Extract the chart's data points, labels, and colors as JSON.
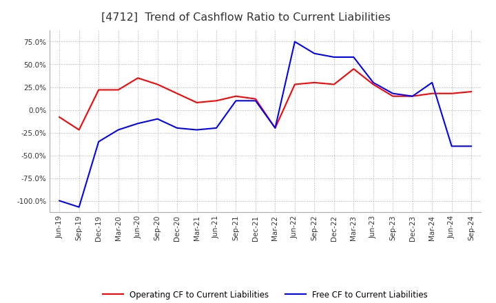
{
  "title": "[4712]  Trend of Cashflow Ratio to Current Liabilities",
  "title_fontsize": 11.5,
  "x_labels": [
    "Jun-19",
    "Sep-19",
    "Dec-19",
    "Mar-20",
    "Jun-20",
    "Sep-20",
    "Dec-20",
    "Mar-21",
    "Jun-21",
    "Sep-21",
    "Dec-21",
    "Mar-22",
    "Jun-22",
    "Sep-22",
    "Dec-22",
    "Mar-23",
    "Jun-23",
    "Sep-23",
    "Dec-23",
    "Mar-24",
    "Jun-24",
    "Sep-24"
  ],
  "operating_cf": [
    -8.0,
    -22.0,
    22.0,
    22.0,
    35.0,
    28.0,
    18.0,
    8.0,
    10.0,
    15.0,
    12.0,
    -20.0,
    28.0,
    30.0,
    28.0,
    45.0,
    28.0,
    15.0,
    15.0,
    18.0,
    18.0,
    20.0
  ],
  "free_cf": [
    -100.0,
    -107.0,
    -35.0,
    -22.0,
    -15.0,
    -10.0,
    -20.0,
    -22.0,
    -20.0,
    10.0,
    10.0,
    -20.0,
    75.0,
    62.0,
    58.0,
    58.0,
    30.0,
    18.0,
    15.0,
    30.0,
    -40.0,
    -40.0
  ],
  "operating_cf_color": "#ff0000",
  "free_cf_color": "#0000ff",
  "ylim": [
    -112.5,
    87.5
  ],
  "yticks": [
    75.0,
    50.0,
    25.0,
    0.0,
    -25.0,
    -50.0,
    -75.0,
    -100.0
  ],
  "background_color": "#ffffff",
  "plot_bg_color": "#ffffff",
  "grid_color": "#aaaaaa",
  "legend_labels": [
    "Operating CF to Current Liabilities",
    "Free CF to Current Liabilities"
  ]
}
